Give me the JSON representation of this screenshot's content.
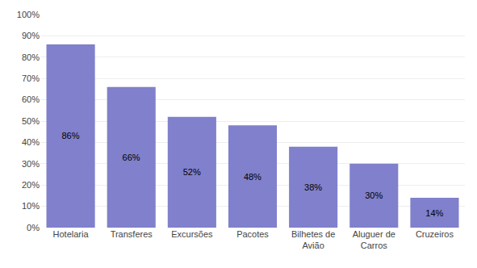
{
  "chart_data": {
    "type": "bar",
    "categories": [
      "Hotelaria",
      "Transferes",
      "Excursões",
      "Pacotes",
      "Bilhetes de\nAvião",
      "Aluguer de\nCarros",
      "Cruzeiros"
    ],
    "values": [
      86,
      66,
      52,
      48,
      38,
      30,
      14
    ],
    "value_labels": [
      "86%",
      "66%",
      "52%",
      "48%",
      "38%",
      "30%",
      "14%"
    ],
    "data_labels": true,
    "color": "#8080cc",
    "ylim": [
      0,
      100
    ],
    "yticks": [
      {
        "value": 0,
        "label": "0%"
      },
      {
        "value": 10,
        "label": "10%"
      },
      {
        "value": 20,
        "label": "20%"
      },
      {
        "value": 30,
        "label": "30%"
      },
      {
        "value": 40,
        "label": "40%"
      },
      {
        "value": 50,
        "label": "50%"
      },
      {
        "value": 60,
        "label": "60%"
      },
      {
        "value": 70,
        "label": "70%"
      },
      {
        "value": 80,
        "label": "80%"
      },
      {
        "value": 90,
        "label": "90%"
      },
      {
        "value": 100,
        "label": "100%"
      }
    ],
    "grid": true
  }
}
